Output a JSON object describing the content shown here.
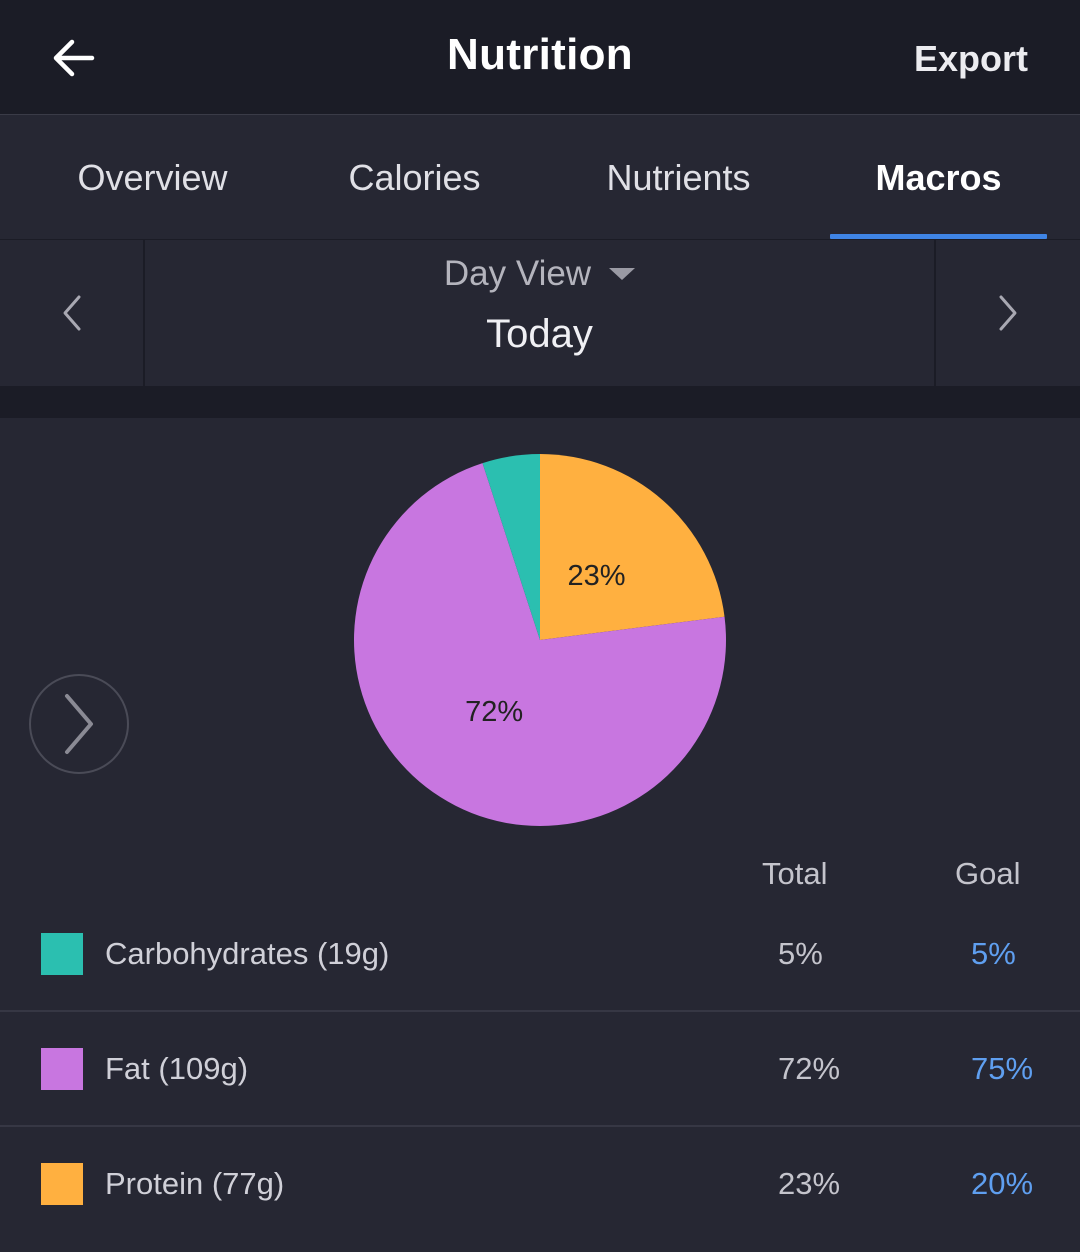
{
  "header": {
    "title": "Nutrition",
    "export_label": "Export",
    "back_icon": "arrow-left-icon"
  },
  "tabs": [
    {
      "label": "Overview",
      "active": false
    },
    {
      "label": "Calories",
      "active": false
    },
    {
      "label": "Nutrients",
      "active": false
    },
    {
      "label": "Macros",
      "active": true
    }
  ],
  "date_bar": {
    "view_label": "Day View",
    "date_label": "Today"
  },
  "colors": {
    "carbohydrates": "#2bbfb0",
    "fat": "#c876e0",
    "protein": "#ffb040",
    "accent": "#3f84e5",
    "goal_text": "#5f9ff0"
  },
  "chart_data": {
    "type": "pie",
    "slices": [
      {
        "name": "Protein",
        "value": 23,
        "color": "#ffb040",
        "label": "23%"
      },
      {
        "name": "Fat",
        "value": 72,
        "color": "#c876e0",
        "label": "72%"
      },
      {
        "name": "Carbohydrates",
        "value": 5,
        "color": "#2bbfb0",
        "label": ""
      }
    ]
  },
  "table": {
    "total_header": "Total",
    "goal_header": "Goal",
    "rows": [
      {
        "name": "Carbohydrates (19g)",
        "total": "5%",
        "goal": "5%",
        "color": "#2bbfb0"
      },
      {
        "name": "Fat (109g)",
        "total": "72%",
        "goal": "75%",
        "color": "#c876e0"
      },
      {
        "name": "Protein (77g)",
        "total": "23%",
        "goal": "20%",
        "color": "#ffb040"
      }
    ]
  }
}
